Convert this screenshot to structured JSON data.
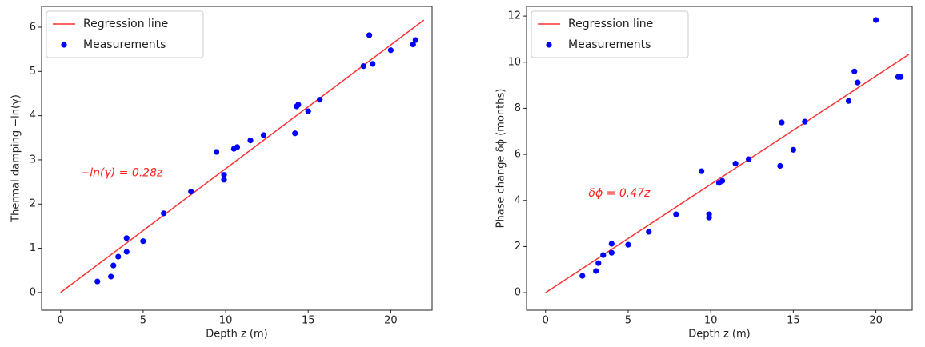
{
  "chart_data": [
    {
      "type": "scatter",
      "xlabel": "Depth z (m)",
      "ylabel": "Thermal damping −ln(γ)",
      "annotation": "−ln(γ) = 0.28z",
      "xlim": [
        -1.15,
        22.5
      ],
      "ylim": [
        -0.4,
        6.47
      ],
      "xticks": [
        0,
        5,
        10,
        15,
        20
      ],
      "yticks": [
        0,
        1,
        2,
        3,
        4,
        5,
        6
      ],
      "legend": "upper left",
      "series": [
        {
          "name": "Regression line",
          "type": "line",
          "color": "#ff3030",
          "x": [
            0,
            22
          ],
          "values": [
            0,
            6.16
          ]
        },
        {
          "name": "Measurements",
          "type": "scatter",
          "color": "#0000ff",
          "x": [
            2.23,
            3.05,
            3.2,
            3.49,
            4.0,
            4.0,
            5.0,
            6.25,
            7.9,
            9.44,
            9.9,
            9.9,
            10.5,
            10.7,
            11.5,
            12.3,
            14.2,
            14.3,
            14.4,
            15.0,
            15.7,
            18.35,
            18.7,
            18.9,
            20.0,
            21.35,
            21.5
          ],
          "values": [
            0.25,
            0.36,
            0.61,
            0.81,
            1.23,
            0.92,
            1.16,
            1.79,
            2.28,
            3.18,
            2.66,
            2.55,
            3.25,
            3.29,
            3.44,
            3.56,
            3.6,
            4.21,
            4.25,
            4.1,
            4.36,
            5.12,
            5.82,
            5.17,
            5.48,
            5.61,
            5.71
          ]
        }
      ]
    },
    {
      "type": "scatter",
      "xlabel": "Depth z (m)",
      "ylabel": "Phase change δϕ (months)",
      "annotation": "δϕ = 0.47z",
      "xlim": [
        -1.15,
        22.2
      ],
      "ylim": [
        -0.76,
        12.42
      ],
      "xticks": [
        0,
        5,
        10,
        15,
        20
      ],
      "yticks": [
        0,
        2,
        4,
        6,
        8,
        10,
        12
      ],
      "legend": "upper left",
      "series": [
        {
          "name": "Regression line",
          "type": "line",
          "color": "#ff3030",
          "x": [
            0,
            22
          ],
          "values": [
            0,
            10.34
          ]
        },
        {
          "name": "Measurements",
          "type": "scatter",
          "color": "#0000ff",
          "x": [
            2.23,
            3.05,
            3.2,
            3.49,
            4.0,
            4.0,
            5.0,
            6.25,
            7.9,
            9.44,
            9.9,
            9.9,
            10.5,
            10.7,
            11.5,
            12.3,
            14.2,
            14.3,
            15.0,
            15.7,
            18.35,
            18.7,
            18.9,
            20.0,
            21.35,
            21.5
          ],
          "values": [
            0.73,
            0.94,
            1.28,
            1.63,
            2.12,
            1.73,
            2.08,
            2.64,
            3.4,
            5.27,
            3.4,
            3.26,
            4.76,
            4.85,
            5.6,
            5.79,
            5.5,
            7.39,
            6.2,
            7.42,
            8.32,
            9.6,
            9.12,
            11.83,
            9.36,
            9.36
          ]
        }
      ]
    }
  ]
}
